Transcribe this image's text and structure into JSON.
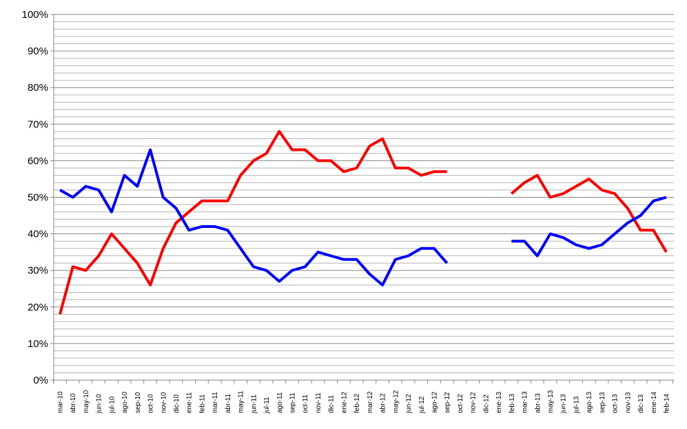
{
  "chart_data": {
    "type": "line",
    "title": "",
    "xlabel": "",
    "ylabel": "",
    "ylim": [
      0,
      100
    ],
    "y_ticks": [
      "0%",
      "10%",
      "20%",
      "30%",
      "40%",
      "50%",
      "60%",
      "70%",
      "80%",
      "90%",
      "100%"
    ],
    "grid": "horizontal, minor every 2%",
    "legend": "none",
    "categories": [
      "mar-10",
      "abr-10",
      "may-10",
      "jun-10",
      "jul-10",
      "ago-10",
      "sep-10",
      "oct-10",
      "nov-10",
      "dic-10",
      "ene-11",
      "feb-11",
      "mar-11",
      "abr-11",
      "may-11",
      "jun-11",
      "jul-11",
      "ago-11",
      "sep-11",
      "oct-11",
      "nov-11",
      "dic-11",
      "ene-12",
      "feb-12",
      "mar-12",
      "abr-12",
      "may-12",
      "jun-12",
      "jul-12",
      "ago-12",
      "sep-12",
      "oct-12",
      "nov-12",
      "dic-12",
      "ene-13",
      "feb-13",
      "mar-13",
      "abr-13",
      "may-13",
      "jun-13",
      "jul-13",
      "ago-13",
      "sep-13",
      "oct-13",
      "nov-13",
      "dic-13",
      "ene-14",
      "feb-14"
    ],
    "series": [
      {
        "name": "red",
        "color": "#ff0000",
        "values": [
          18,
          31,
          30,
          34,
          40,
          36,
          32,
          26,
          36,
          43,
          46,
          49,
          49,
          49,
          56,
          60,
          62,
          68,
          63,
          63,
          60,
          60,
          57,
          58,
          64,
          66,
          58,
          58,
          56,
          57,
          57,
          null,
          null,
          null,
          null,
          51,
          54,
          56,
          50,
          51,
          53,
          55,
          52,
          51,
          47,
          41,
          41,
          35
        ]
      },
      {
        "name": "blue",
        "color": "#0000ff",
        "values": [
          52,
          50,
          53,
          52,
          46,
          56,
          53,
          63,
          50,
          47,
          41,
          42,
          42,
          41,
          36,
          31,
          30,
          27,
          30,
          31,
          35,
          34,
          33,
          33,
          29,
          26,
          33,
          34,
          36,
          36,
          32,
          null,
          null,
          null,
          null,
          38,
          38,
          34,
          40,
          39,
          37,
          36,
          37,
          40,
          43,
          45,
          49,
          50
        ]
      }
    ]
  }
}
